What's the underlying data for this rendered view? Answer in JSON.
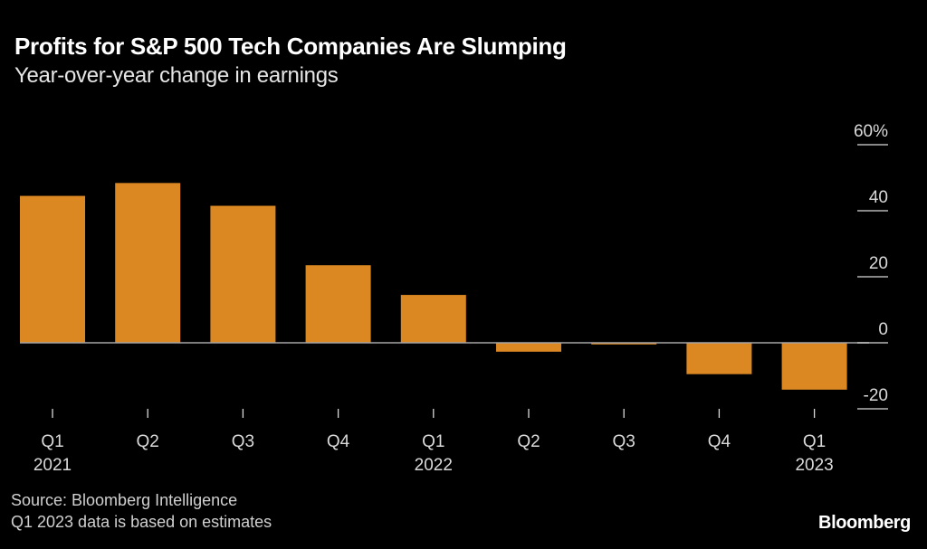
{
  "chart_data": {
    "type": "bar",
    "title": "Profits for S&P 500 Tech Companies Are Slumping",
    "subtitle": "Year-over-year change in earnings",
    "xlabel": "",
    "ylabel": "",
    "categories": [
      "Q1 2021",
      "Q2 2021",
      "Q3 2021",
      "Q4 2021",
      "Q1 2022",
      "Q2 2022",
      "Q3 2022",
      "Q4 2022",
      "Q1 2023"
    ],
    "x_tick_labels": [
      {
        "line1": "Q1",
        "line2": "2021"
      },
      {
        "line1": "Q2",
        "line2": ""
      },
      {
        "line1": "Q3",
        "line2": ""
      },
      {
        "line1": "Q4",
        "line2": ""
      },
      {
        "line1": "Q1",
        "line2": "2022"
      },
      {
        "line1": "Q2",
        "line2": ""
      },
      {
        "line1": "Q3",
        "line2": ""
      },
      {
        "line1": "Q4",
        "line2": ""
      },
      {
        "line1": "Q1",
        "line2": "2023"
      }
    ],
    "values": [
      44.5,
      48.4,
      41.5,
      23.5,
      14.5,
      -2.7,
      -0.5,
      -9.5,
      -14.2
    ],
    "ylim": [
      -20,
      60
    ],
    "y_ticks": [
      60,
      40,
      20,
      0,
      -20
    ],
    "y_tick_labels": [
      "60%",
      "40",
      "20",
      "0",
      "-20"
    ],
    "y_axis_side": "right",
    "grid": false,
    "bar_color": "#db8823",
    "source": "Source: Bloomberg Intelligence",
    "note": "Q1 2023 data is based on estimates",
    "brand": "Bloomberg"
  }
}
